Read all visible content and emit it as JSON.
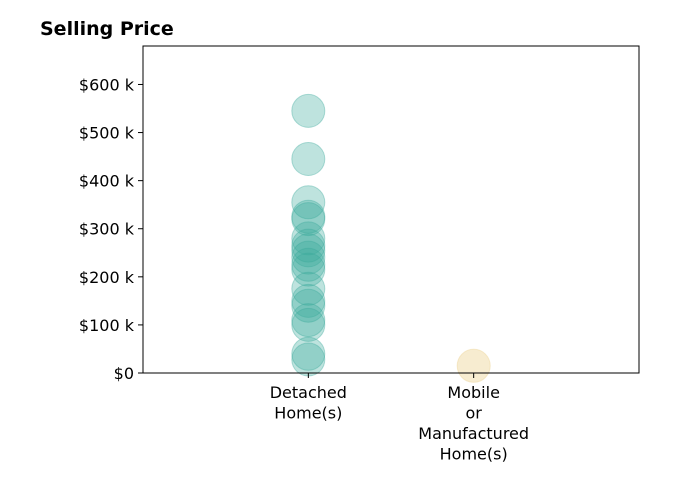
{
  "chart_data": {
    "type": "scatter",
    "title": "Selling Price",
    "xlabel": "",
    "ylabel": "",
    "categories": [
      [
        "Detached",
        "Home(s)"
      ],
      [
        "Mobile",
        "or",
        "Manufactured",
        "Home(s)"
      ]
    ],
    "xlim": [
      -1,
      2
    ],
    "ylim": [
      0,
      680000
    ],
    "yticks": [
      0,
      100000,
      200000,
      300000,
      400000,
      500000,
      600000
    ],
    "ytick_labels": [
      "$0",
      "$100 k",
      "$200 k",
      "$300 k",
      "$400 k",
      "$500 k",
      "$600 k"
    ],
    "grid": false,
    "series": [
      {
        "category_index": 0,
        "color": "#3aa99a",
        "opacity": 0.33,
        "values": [
          545000,
          445000,
          355000,
          325000,
          320000,
          280000,
          265000,
          255000,
          240000,
          225000,
          215000,
          175000,
          150000,
          140000,
          110000,
          100000,
          40000,
          28000
        ]
      },
      {
        "category_index": 1,
        "color": "#f0dcaa",
        "opacity": 0.55,
        "values": [
          15000
        ]
      }
    ]
  }
}
